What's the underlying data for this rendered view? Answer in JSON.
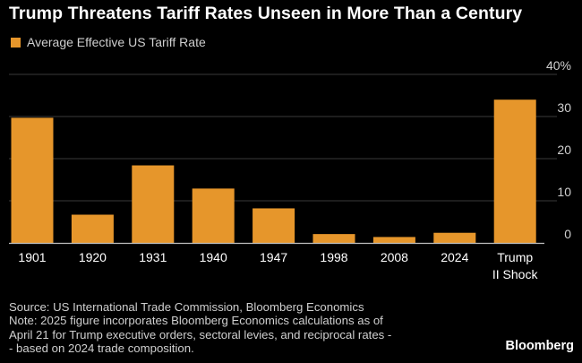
{
  "colors": {
    "background": "#000000",
    "bar": "#e6962b",
    "gridline": "#3a3a3a",
    "baseline": "#bfbfbf",
    "text": "#ffffff",
    "muted_text": "#cfcfcf"
  },
  "chart_data": {
    "type": "bar",
    "title": "Trump Threatens Tariff Rates Unseen in More Than a Century",
    "xlabel": "",
    "ylabel": "",
    "ylim": [
      0,
      40
    ],
    "y_ticks": [
      0,
      10,
      20,
      30,
      40
    ],
    "y_tick_labels": [
      "0",
      "10",
      "20",
      "30",
      "40%"
    ],
    "y_axis_side": "right",
    "grid": true,
    "legend_position": "top-left",
    "categories": [
      [
        "1901"
      ],
      [
        "1920"
      ],
      [
        "1931"
      ],
      [
        "1940"
      ],
      [
        "1947"
      ],
      [
        "1998"
      ],
      [
        "2008"
      ],
      [
        "2024"
      ],
      [
        "Trump",
        "II Shock"
      ]
    ],
    "series": [
      {
        "name": "Average Effective US Tariff Rate",
        "values": [
          29.7,
          6.7,
          18.4,
          12.9,
          8.2,
          2.1,
          1.4,
          2.4,
          34.0
        ]
      }
    ]
  },
  "footnote": {
    "lines": [
      "Source: US International Trade Commission, Bloomberg Economics",
      "Note: 2025 figure incorporates Bloomberg Economics calculations as of",
      "April 21 for Trump executive orders, sectoral levies, and reciprocal rates -",
      "- based on 2024 trade composition."
    ]
  },
  "brand": "Bloomberg"
}
